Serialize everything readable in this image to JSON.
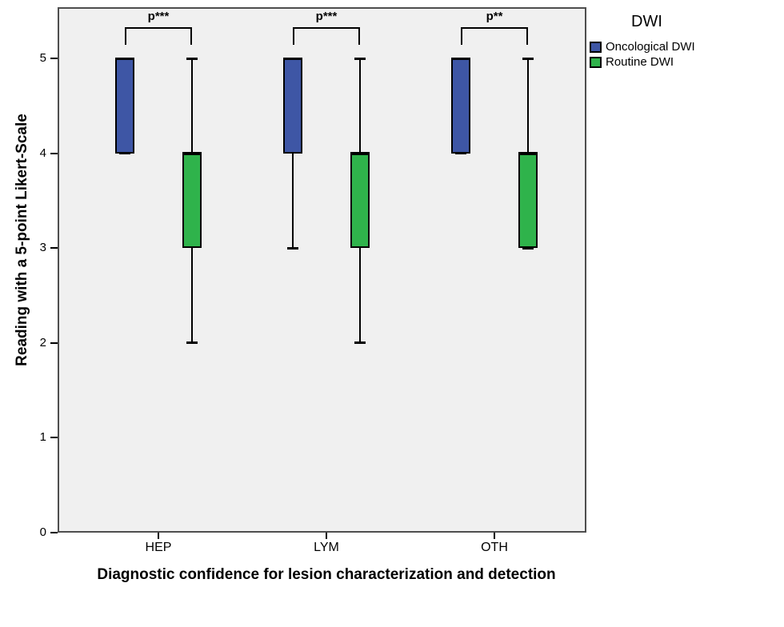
{
  "chart_data": {
    "type": "grouped_boxplot",
    "xlabel": "Diagnostic confidence for lesion characterization and detection",
    "ylabel": "Reading with a 5-point Likert-Scale",
    "ylim": [
      0,
      5
    ],
    "yticks": [
      0,
      1,
      2,
      3,
      4,
      5
    ],
    "categories": [
      "HEP",
      "LYM",
      "OTH"
    ],
    "grid": false,
    "plot_bg": "#f0f0f0",
    "frame_color": "#4e4e4e",
    "legend_position": "top-right-outside",
    "legend": {
      "title": "DWI",
      "entries": [
        {
          "label": "Oncological DWI",
          "color": "#3e56a5"
        },
        {
          "label": "Routine DWI",
          "color": "#2fb34b"
        }
      ]
    },
    "series": [
      {
        "name": "Oncological DWI",
        "color": "#3e56a5",
        "boxes": [
          {
            "category": "HEP",
            "min": 4,
            "q1": 4,
            "median": 5,
            "q3": 5,
            "max": 5
          },
          {
            "category": "LYM",
            "min": 3,
            "q1": 4,
            "median": 5,
            "q3": 5,
            "max": 5
          },
          {
            "category": "OTH",
            "min": 4,
            "q1": 4,
            "median": 5,
            "q3": 5,
            "max": 5
          }
        ]
      },
      {
        "name": "Routine DWI",
        "color": "#2fb34b",
        "boxes": [
          {
            "category": "HEP",
            "min": 2,
            "q1": 3,
            "median": 4,
            "q3": 4,
            "max": 5
          },
          {
            "category": "LYM",
            "min": 2,
            "q1": 3,
            "median": 4,
            "q3": 4,
            "max": 5
          },
          {
            "category": "OTH",
            "min": 3,
            "q1": 3,
            "median": 4,
            "q3": 4,
            "max": 5
          }
        ]
      }
    ],
    "annotations": [
      {
        "category": "HEP",
        "label": "p***"
      },
      {
        "category": "LYM",
        "label": "p***"
      },
      {
        "category": "OTH",
        "label": "p**"
      }
    ]
  }
}
